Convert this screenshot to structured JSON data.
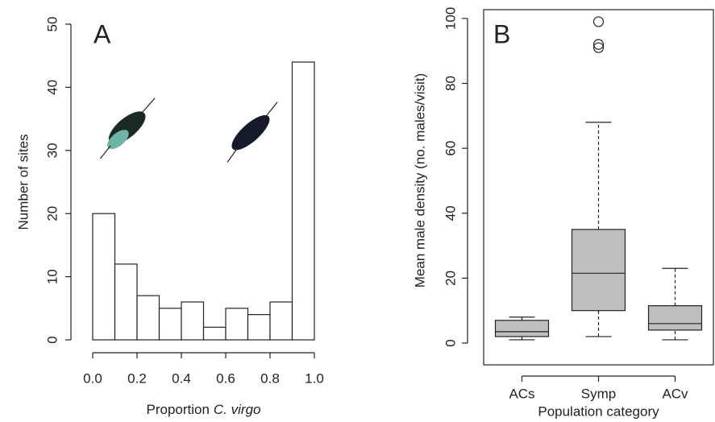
{
  "chart_data": [
    {
      "type": "histogram",
      "panel": "A",
      "xlabel": [
        "Proportion",
        "C. virgo"
      ],
      "ylabel": "Number of sites",
      "bins": [
        0,
        0.1,
        0.2,
        0.3,
        0.4,
        0.5,
        0.6,
        0.7,
        0.8,
        0.9,
        1.0
      ],
      "values": [
        20,
        12,
        7,
        5,
        6,
        2,
        5,
        4,
        6,
        44
      ],
      "color": "#ffffff",
      "xlim": [
        0,
        1
      ],
      "xticks": [
        {
          "value": 0,
          "label": "0.0"
        },
        0.2,
        0.4,
        0.6,
        0.8,
        {
          "value": 1,
          "label": "1.0"
        }
      ],
      "ylim": [
        0,
        50
      ],
      "yticks": [
        0,
        10,
        20,
        30,
        40,
        50
      ]
    },
    {
      "type": "box",
      "panel": "B",
      "xlabel": "Population category",
      "ylabel": "Mean male density (no. males/visit)",
      "categories": [
        "ACs",
        "Symp",
        "ACv"
      ],
      "color": "#bebebe",
      "boxes": [
        {
          "min": 1,
          "q1": 2,
          "median": 3.5,
          "q3": 7,
          "max": 8,
          "outliers": []
        },
        {
          "min": 2,
          "q1": 10,
          "median": 21.5,
          "q3": 35,
          "max": 68,
          "outliers": [
            91,
            92,
            99
          ]
        },
        {
          "min": 1,
          "q1": 4,
          "median": 6,
          "q3": 11.5,
          "max": 23,
          "outliers": []
        }
      ],
      "ylim": [
        -6.7,
        102.7
      ],
      "yticks": [
        0,
        20,
        40,
        60,
        80,
        100
      ]
    }
  ]
}
